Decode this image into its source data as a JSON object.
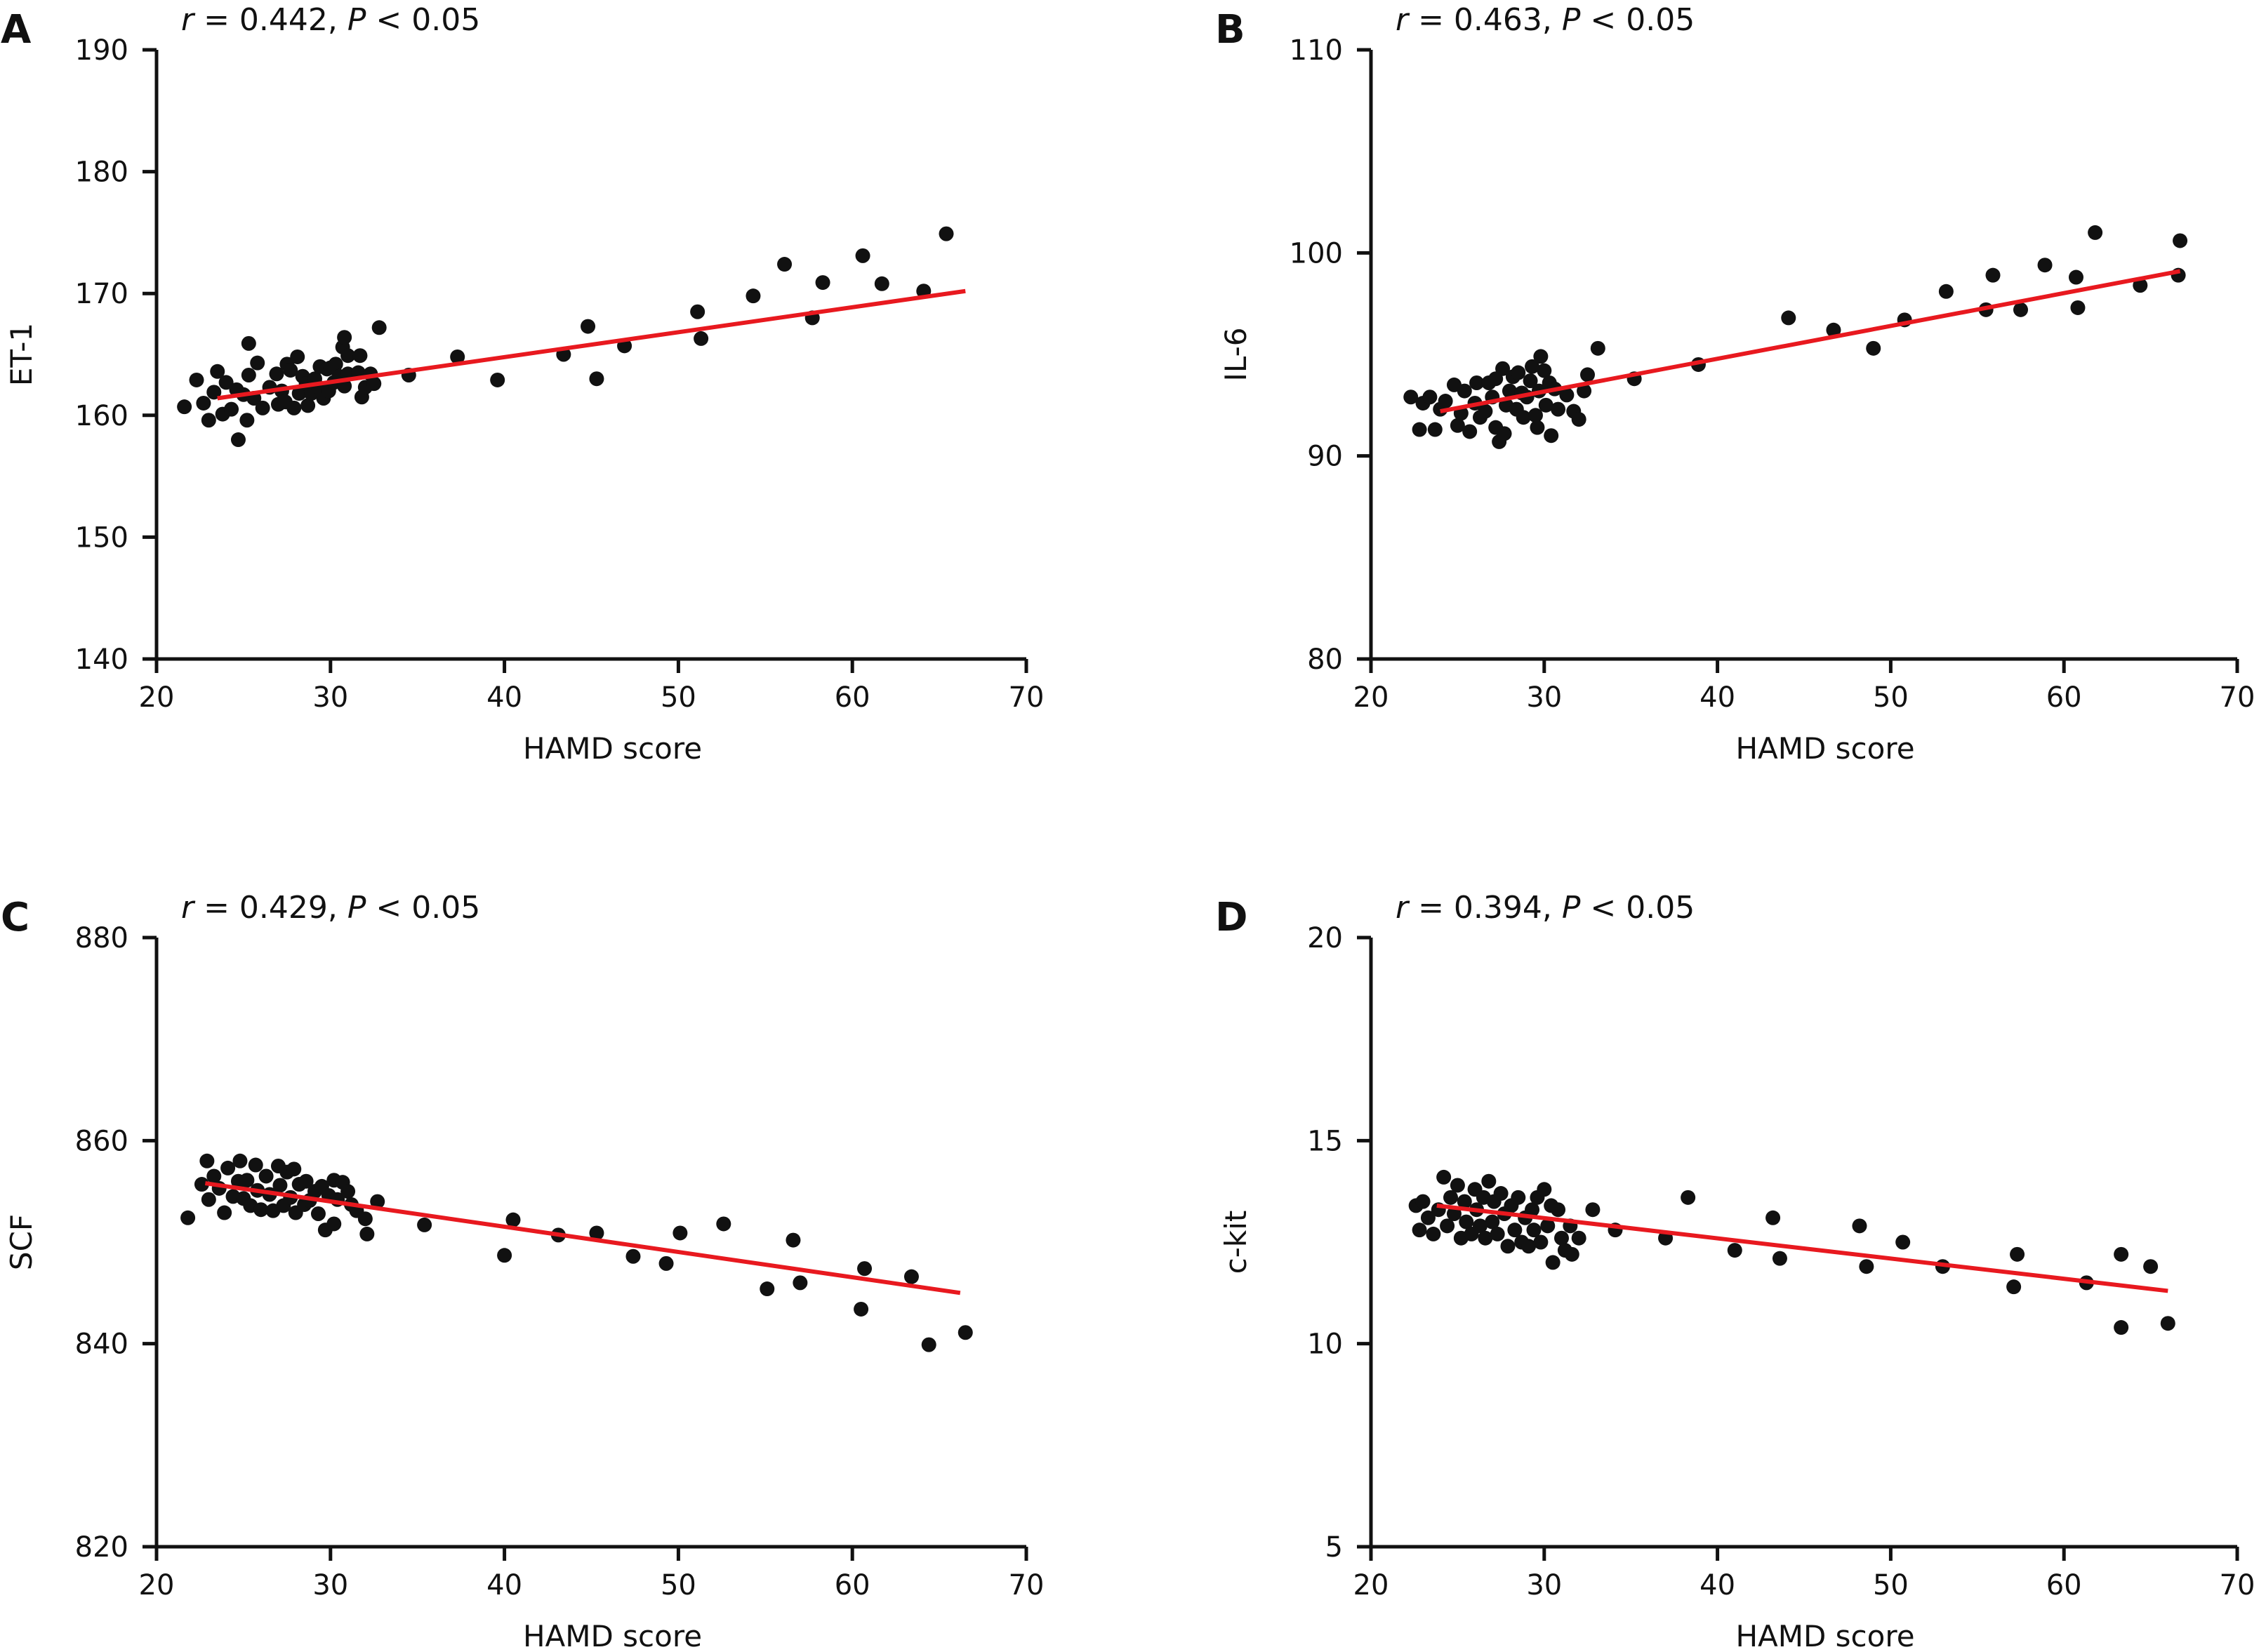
{
  "chart_data": [
    {
      "panel": "A",
      "type": "scatter",
      "stat_r": "r",
      "stat_rest": " = 0.442, ",
      "stat_p": "P",
      "stat_tail": " < 0.05",
      "xlabel": "HAMD score",
      "ylabel": "ET-1",
      "xlim": [
        20,
        70
      ],
      "ylim": [
        140,
        190
      ],
      "xticks": [
        "20",
        "30",
        "40",
        "50",
        "60",
        "70"
      ],
      "yticks": [
        "140",
        "150",
        "160",
        "170",
        "180",
        "190"
      ],
      "line_color": "#e8191f",
      "point_color": "#111111",
      "fit": {
        "x": [
          23.5,
          66.5
        ],
        "y": [
          161.4,
          170.2
        ]
      },
      "points": [
        [
          21.6,
          160.7
        ],
        [
          22.3,
          162.9
        ],
        [
          22.7,
          161.0
        ],
        [
          23.0,
          159.6
        ],
        [
          23.3,
          161.9
        ],
        [
          23.5,
          163.6
        ],
        [
          23.8,
          160.1
        ],
        [
          24.0,
          162.7
        ],
        [
          24.3,
          160.5
        ],
        [
          24.7,
          158.0
        ],
        [
          24.6,
          162.1
        ],
        [
          25.0,
          161.7
        ],
        [
          25.2,
          159.6
        ],
        [
          25.3,
          163.3
        ],
        [
          25.6,
          161.4
        ],
        [
          25.8,
          164.3
        ],
        [
          25.3,
          165.9
        ],
        [
          26.1,
          160.6
        ],
        [
          26.5,
          162.3
        ],
        [
          27.0,
          160.9
        ],
        [
          26.9,
          163.4
        ],
        [
          27.2,
          162.0
        ],
        [
          27.4,
          161.1
        ],
        [
          27.5,
          164.2
        ],
        [
          27.7,
          163.7
        ],
        [
          27.9,
          160.6
        ],
        [
          28.1,
          164.8
        ],
        [
          28.2,
          161.8
        ],
        [
          28.4,
          163.2
        ],
        [
          28.6,
          162.6
        ],
        [
          28.7,
          160.8
        ],
        [
          28.9,
          161.8
        ],
        [
          29.1,
          163.0
        ],
        [
          29.3,
          162.3
        ],
        [
          29.4,
          164.0
        ],
        [
          29.6,
          161.4
        ],
        [
          29.8,
          163.8
        ],
        [
          29.9,
          162.0
        ],
        [
          30.0,
          163.9
        ],
        [
          30.2,
          162.7
        ],
        [
          30.3,
          164.2
        ],
        [
          30.5,
          163.2
        ],
        [
          30.7,
          165.6
        ],
        [
          30.8,
          166.4
        ],
        [
          30.8,
          162.4
        ],
        [
          31.0,
          164.9
        ],
        [
          31.0,
          163.4
        ],
        [
          31.6,
          163.5
        ],
        [
          31.7,
          164.9
        ],
        [
          31.8,
          161.5
        ],
        [
          32.0,
          162.3
        ],
        [
          32.3,
          163.4
        ],
        [
          32.5,
          162.6
        ],
        [
          32.8,
          167.2
        ],
        [
          34.5,
          163.3
        ],
        [
          37.3,
          164.8
        ],
        [
          39.6,
          162.9
        ],
        [
          43.4,
          165.0
        ],
        [
          44.8,
          167.3
        ],
        [
          45.3,
          163.0
        ],
        [
          46.9,
          165.7
        ],
        [
          51.1,
          168.5
        ],
        [
          51.3,
          166.3
        ],
        [
          54.3,
          169.8
        ],
        [
          56.1,
          172.4
        ],
        [
          57.7,
          168.0
        ],
        [
          58.3,
          170.9
        ],
        [
          60.6,
          173.1
        ],
        [
          61.7,
          170.8
        ],
        [
          64.1,
          170.2
        ],
        [
          65.4,
          174.9
        ]
      ]
    },
    {
      "panel": "B",
      "type": "scatter",
      "stat_r": "r",
      "stat_rest": " = 0.463, ",
      "stat_p": "P",
      "stat_tail": " < 0.05",
      "xlabel": "HAMD score",
      "ylabel": "IL-6",
      "xlim": [
        20,
        70
      ],
      "ylim": [
        80,
        110
      ],
      "xticks": [
        "20",
        "30",
        "40",
        "50",
        "60",
        "70"
      ],
      "yticks": [
        "80",
        "90",
        "100",
        "110"
      ],
      "line_color": "#e8191f",
      "point_color": "#111111",
      "fit": {
        "x": [
          24.0,
          66.7
        ],
        "y": [
          92.2,
          99.1
        ]
      },
      "points": [
        [
          22.3,
          92.9
        ],
        [
          22.8,
          91.3
        ],
        [
          23.0,
          92.6
        ],
        [
          23.4,
          92.9
        ],
        [
          23.7,
          91.3
        ],
        [
          24.0,
          92.3
        ],
        [
          24.3,
          92.7
        ],
        [
          24.8,
          93.5
        ],
        [
          25.0,
          91.5
        ],
        [
          25.4,
          93.2
        ],
        [
          25.2,
          92.1
        ],
        [
          25.7,
          91.2
        ],
        [
          26.0,
          92.6
        ],
        [
          26.1,
          93.6
        ],
        [
          26.3,
          91.9
        ],
        [
          26.6,
          92.2
        ],
        [
          26.8,
          93.6
        ],
        [
          27.0,
          92.9
        ],
        [
          27.2,
          91.4
        ],
        [
          27.2,
          93.8
        ],
        [
          27.4,
          90.7
        ],
        [
          27.6,
          94.3
        ],
        [
          27.7,
          91.1
        ],
        [
          27.8,
          92.5
        ],
        [
          28.0,
          93.2
        ],
        [
          28.2,
          93.9
        ],
        [
          28.4,
          92.3
        ],
        [
          28.5,
          94.1
        ],
        [
          28.7,
          93.1
        ],
        [
          28.8,
          91.9
        ],
        [
          29.0,
          92.9
        ],
        [
          29.2,
          93.7
        ],
        [
          29.3,
          94.4
        ],
        [
          29.5,
          92.0
        ],
        [
          29.6,
          91.4
        ],
        [
          29.7,
          93.2
        ],
        [
          29.8,
          94.9
        ],
        [
          30.0,
          94.2
        ],
        [
          30.1,
          92.5
        ],
        [
          30.3,
          93.6
        ],
        [
          30.4,
          91.0
        ],
        [
          30.6,
          93.3
        ],
        [
          30.8,
          92.3
        ],
        [
          31.3,
          93.0
        ],
        [
          31.7,
          92.2
        ],
        [
          32.0,
          91.8
        ],
        [
          32.3,
          93.2
        ],
        [
          32.5,
          94.0
        ],
        [
          33.1,
          95.3
        ],
        [
          35.2,
          93.8
        ],
        [
          38.9,
          94.5
        ],
        [
          44.1,
          96.8
        ],
        [
          46.7,
          96.2
        ],
        [
          49.0,
          95.3
        ],
        [
          50.8,
          96.7
        ],
        [
          53.2,
          98.1
        ],
        [
          55.5,
          97.2
        ],
        [
          55.9,
          98.9
        ],
        [
          57.5,
          97.2
        ],
        [
          58.9,
          99.4
        ],
        [
          60.7,
          98.8
        ],
        [
          60.8,
          97.3
        ],
        [
          61.8,
          101.0
        ],
        [
          64.4,
          98.4
        ],
        [
          66.6,
          98.9
        ],
        [
          66.7,
          100.6
        ]
      ]
    },
    {
      "panel": "C",
      "type": "scatter",
      "stat_r": "r",
      "stat_rest": " = 0.429, ",
      "stat_p": "P",
      "stat_tail": " < 0.05",
      "xlabel": "HAMD score",
      "ylabel": "SCF",
      "xlim": [
        20,
        70
      ],
      "ylim": [
        820,
        880
      ],
      "xticks": [
        "20",
        "30",
        "40",
        "50",
        "60",
        "70"
      ],
      "yticks": [
        "820",
        "840",
        "860",
        "880"
      ],
      "line_color": "#e8191f",
      "point_color": "#111111",
      "fit": {
        "x": [
          22.8,
          66.2
        ],
        "y": [
          855.8,
          845.0
        ]
      },
      "points": [
        [
          21.8,
          852.4
        ],
        [
          22.6,
          855.7
        ],
        [
          22.9,
          858.0
        ],
        [
          23.0,
          854.2
        ],
        [
          23.3,
          856.5
        ],
        [
          23.6,
          855.3
        ],
        [
          23.9,
          852.9
        ],
        [
          24.1,
          857.3
        ],
        [
          24.4,
          854.5
        ],
        [
          24.7,
          856.0
        ],
        [
          24.8,
          858.0
        ],
        [
          25.0,
          854.3
        ],
        [
          25.2,
          856.1
        ],
        [
          25.4,
          853.6
        ],
        [
          25.7,
          857.6
        ],
        [
          25.8,
          855.1
        ],
        [
          26.0,
          853.2
        ],
        [
          26.3,
          856.5
        ],
        [
          26.5,
          854.7
        ],
        [
          26.7,
          853.1
        ],
        [
          27.0,
          857.5
        ],
        [
          27.1,
          855.6
        ],
        [
          27.3,
          853.6
        ],
        [
          27.5,
          856.9
        ],
        [
          27.7,
          854.4
        ],
        [
          27.9,
          857.2
        ],
        [
          28.0,
          852.9
        ],
        [
          28.2,
          855.7
        ],
        [
          28.5,
          853.7
        ],
        [
          28.6,
          856.0
        ],
        [
          28.8,
          854.1
        ],
        [
          29.1,
          855.0
        ],
        [
          29.3,
          852.8
        ],
        [
          29.5,
          855.5
        ],
        [
          29.7,
          851.2
        ],
        [
          29.9,
          854.6
        ],
        [
          30.2,
          856.1
        ],
        [
          30.2,
          851.8
        ],
        [
          30.4,
          854.2
        ],
        [
          30.7,
          855.9
        ],
        [
          31.0,
          855.0
        ],
        [
          31.2,
          853.7
        ],
        [
          31.5,
          853.1
        ],
        [
          32.0,
          852.3
        ],
        [
          32.1,
          850.8
        ],
        [
          32.7,
          854.0
        ],
        [
          35.4,
          851.7
        ],
        [
          40.0,
          848.7
        ],
        [
          40.5,
          852.2
        ],
        [
          43.1,
          850.7
        ],
        [
          45.3,
          850.9
        ],
        [
          47.4,
          848.6
        ],
        [
          49.3,
          847.9
        ],
        [
          50.1,
          850.9
        ],
        [
          52.6,
          851.8
        ],
        [
          55.1,
          845.4
        ],
        [
          56.6,
          850.2
        ],
        [
          57.0,
          846.0
        ],
        [
          60.5,
          843.4
        ],
        [
          60.7,
          847.4
        ],
        [
          63.4,
          846.6
        ],
        [
          64.4,
          839.9
        ],
        [
          66.5,
          841.1
        ]
      ]
    },
    {
      "panel": "D",
      "type": "scatter",
      "stat_r": "r",
      "stat_rest": " = 0.394, ",
      "stat_p": "P",
      "stat_tail": " < 0.05",
      "xlabel": "HAMD score",
      "ylabel": "c-kit",
      "xlim": [
        20,
        70
      ],
      "ylim": [
        5,
        20
      ],
      "xticks": [
        "20",
        "30",
        "40",
        "50",
        "60",
        "70"
      ],
      "yticks": [
        "5",
        "10",
        "15",
        "20"
      ],
      "line_color": "#e8191f",
      "point_color": "#111111",
      "fit": {
        "x": [
          23.8,
          66.0
        ],
        "y": [
          13.4,
          11.3
        ]
      },
      "points": [
        [
          22.6,
          13.4
        ],
        [
          22.8,
          12.8
        ],
        [
          23.0,
          13.5
        ],
        [
          23.3,
          13.1
        ],
        [
          23.6,
          12.7
        ],
        [
          23.9,
          13.3
        ],
        [
          24.2,
          14.1
        ],
        [
          24.4,
          12.9
        ],
        [
          24.6,
          13.6
        ],
        [
          24.8,
          13.2
        ],
        [
          25.0,
          13.9
        ],
        [
          25.2,
          12.6
        ],
        [
          25.4,
          13.5
        ],
        [
          25.5,
          13.0
        ],
        [
          25.8,
          12.7
        ],
        [
          26.0,
          13.8
        ],
        [
          26.1,
          13.3
        ],
        [
          26.3,
          12.9
        ],
        [
          26.5,
          13.6
        ],
        [
          26.6,
          12.6
        ],
        [
          26.8,
          14.0
        ],
        [
          27.0,
          13.0
        ],
        [
          27.1,
          13.5
        ],
        [
          27.3,
          12.7
        ],
        [
          27.5,
          13.7
        ],
        [
          27.7,
          13.2
        ],
        [
          27.9,
          12.4
        ],
        [
          28.1,
          13.4
        ],
        [
          28.3,
          12.8
        ],
        [
          28.5,
          13.6
        ],
        [
          28.7,
          12.5
        ],
        [
          28.9,
          13.1
        ],
        [
          29.1,
          12.4
        ],
        [
          29.3,
          13.3
        ],
        [
          29.4,
          12.8
        ],
        [
          29.6,
          13.6
        ],
        [
          29.8,
          12.5
        ],
        [
          30.0,
          13.8
        ],
        [
          30.2,
          12.9
        ],
        [
          30.4,
          13.4
        ],
        [
          30.5,
          12.0
        ],
        [
          30.8,
          13.3
        ],
        [
          31.0,
          12.6
        ],
        [
          31.2,
          12.3
        ],
        [
          31.5,
          12.9
        ],
        [
          31.6,
          12.2
        ],
        [
          32.0,
          12.6
        ],
        [
          32.8,
          13.3
        ],
        [
          34.1,
          12.8
        ],
        [
          37.0,
          12.6
        ],
        [
          38.3,
          13.6
        ],
        [
          41.0,
          12.3
        ],
        [
          43.2,
          13.1
        ],
        [
          43.6,
          12.1
        ],
        [
          48.2,
          12.9
        ],
        [
          48.6,
          11.9
        ],
        [
          50.7,
          12.5
        ],
        [
          53.0,
          11.9
        ],
        [
          57.3,
          12.2
        ],
        [
          57.1,
          11.4
        ],
        [
          61.3,
          11.5
        ],
        [
          63.3,
          12.2
        ],
        [
          63.3,
          10.4
        ],
        [
          65.0,
          11.9
        ],
        [
          66.0,
          10.5
        ]
      ]
    }
  ]
}
